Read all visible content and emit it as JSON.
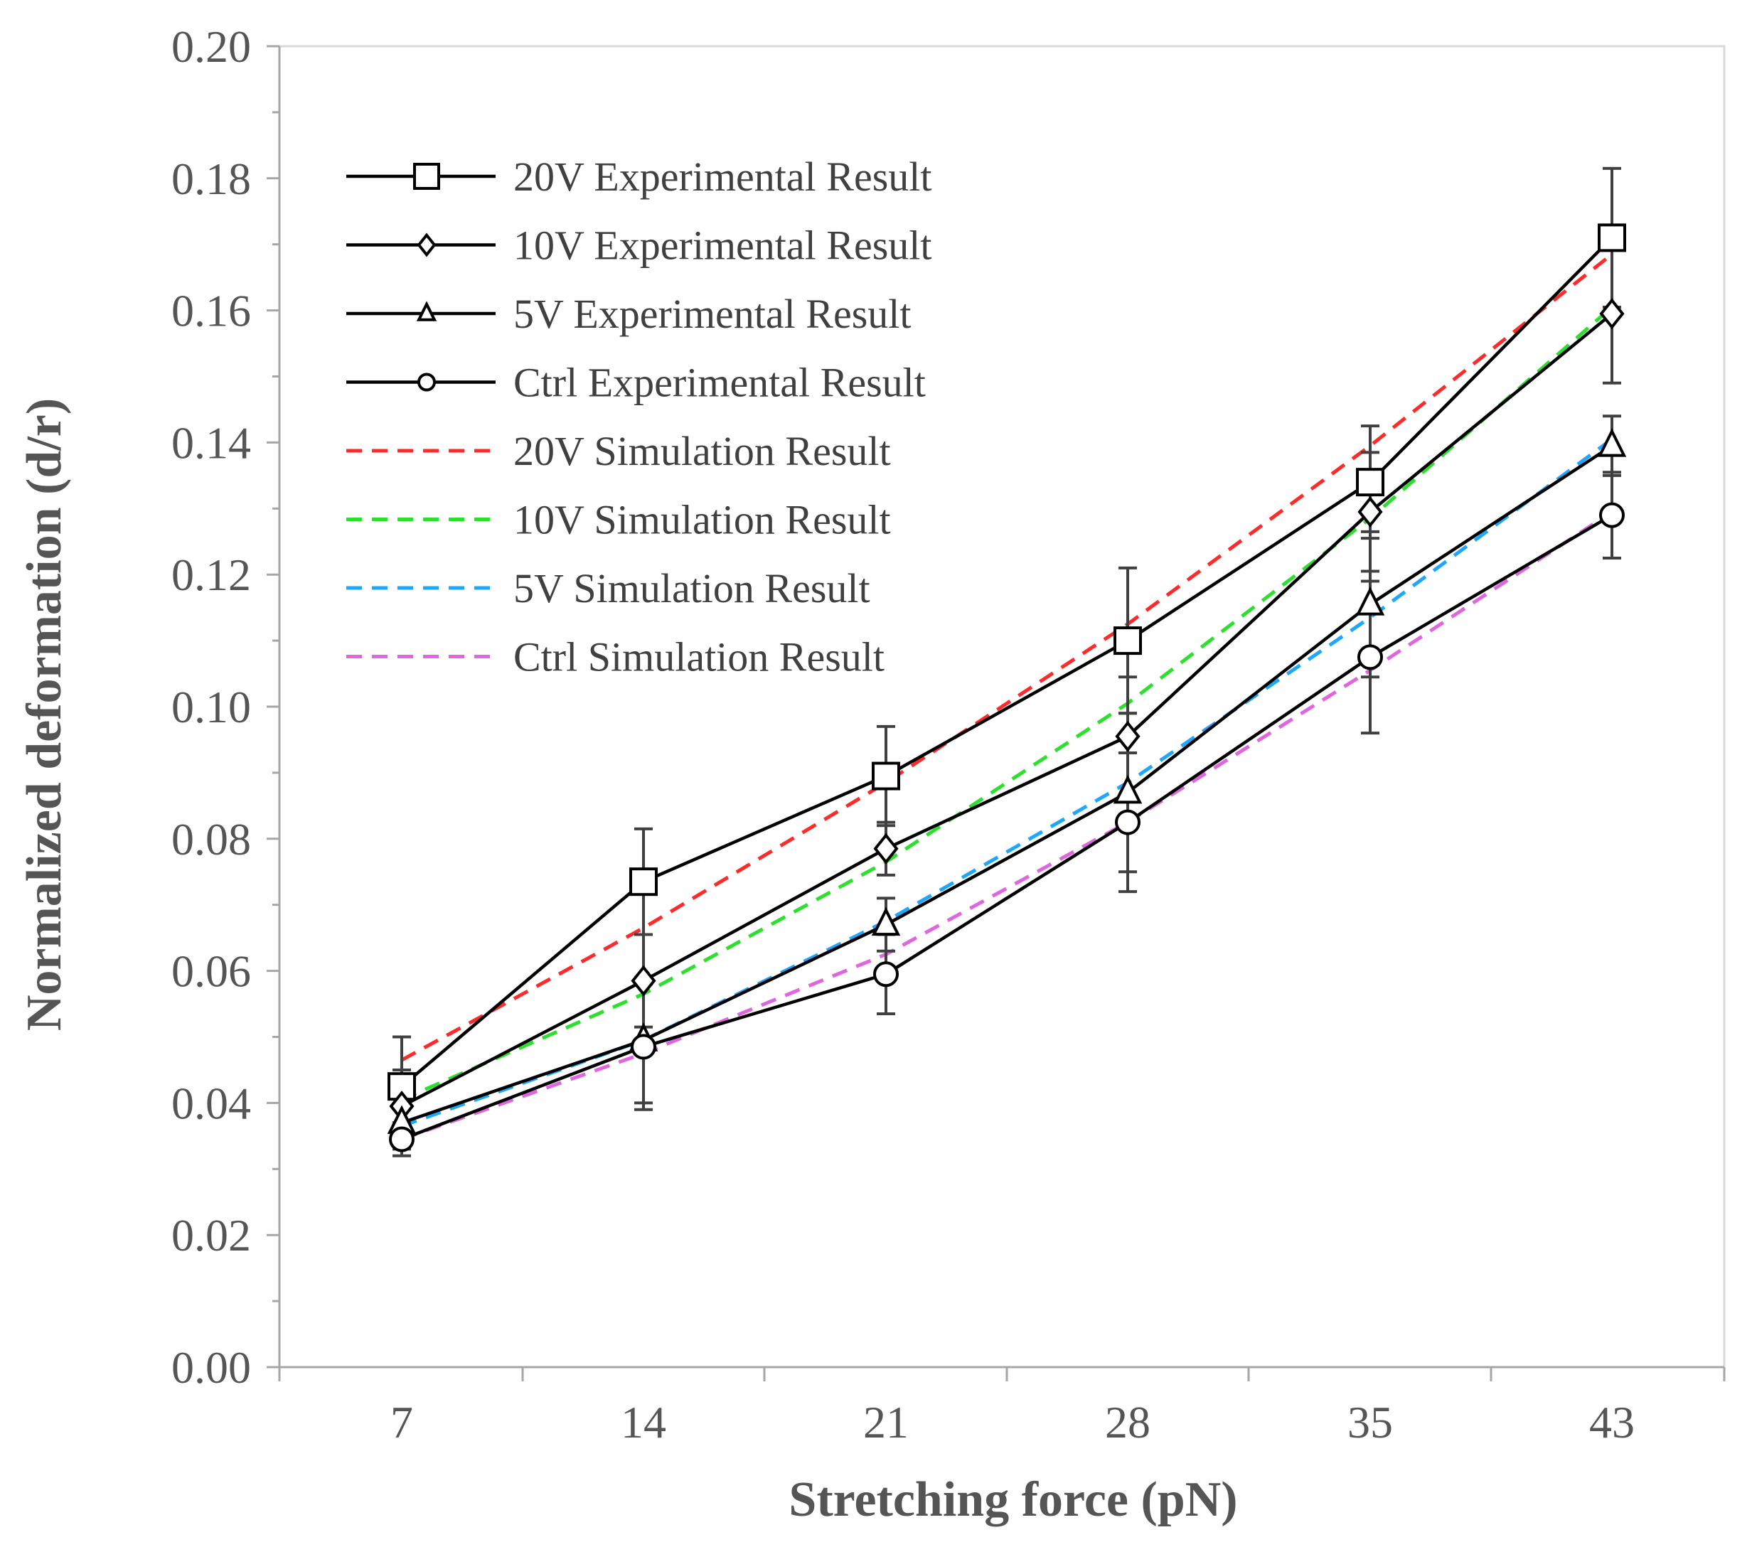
{
  "chart_data": {
    "type": "line",
    "title": "",
    "xlabel": "Stretching force (pN)",
    "ylabel": "Normalized deformation (d/r)",
    "categories": [
      "7",
      "14",
      "21",
      "28",
      "35",
      "43"
    ],
    "ylim": [
      0,
      0.2
    ],
    "yticks": [
      "0.00",
      "0.02",
      "0.04",
      "0.06",
      "0.08",
      "0.10",
      "0.12",
      "0.14",
      "0.16",
      "0.18",
      "0.20"
    ],
    "grid": false,
    "legend_position": "top-left",
    "series": [
      {
        "name": "20V Experimental Result",
        "kind": "experimental",
        "marker": "square",
        "color": "#000000",
        "values": [
          0.0425,
          0.0735,
          0.0895,
          0.11,
          0.134,
          0.171
        ],
        "errors": [
          0.0075,
          0.008,
          0.0075,
          0.011,
          0.0085,
          0.0105
        ]
      },
      {
        "name": "10V Experimental Result",
        "kind": "experimental",
        "marker": "diamond",
        "color": "#000000",
        "values": [
          0.0395,
          0.0585,
          0.0785,
          0.0955,
          0.1295,
          0.1595
        ],
        "errors": [
          0.0055,
          0.007,
          0.004,
          0.009,
          0.009,
          0.0105
        ]
      },
      {
        "name": "5V Experimental Result",
        "kind": "experimental",
        "marker": "triangle",
        "color": "#000000",
        "values": [
          0.037,
          0.0495,
          0.067,
          0.087,
          0.1155,
          0.1395
        ],
        "errors": [
          0.004,
          0.0095,
          0.004,
          0.012,
          0.011,
          0.0045
        ]
      },
      {
        "name": "Ctrl Experimental Result",
        "kind": "experimental",
        "marker": "circle",
        "color": "#000000",
        "values": [
          0.0345,
          0.0485,
          0.0595,
          0.0825,
          0.1075,
          0.129
        ],
        "errors": [
          0.0025,
          0.0095,
          0.006,
          0.0105,
          0.0115,
          0.0065
        ]
      },
      {
        "name": "20V Simulation Result",
        "kind": "simulation",
        "color": "#ff2a2a",
        "values": [
          0.0465,
          0.0665,
          0.0885,
          0.1125,
          0.1395,
          0.1685
        ]
      },
      {
        "name": "10V Simulation Result",
        "kind": "simulation",
        "color": "#2ee02e",
        "values": [
          0.0405,
          0.0565,
          0.0765,
          0.1005,
          0.1285,
          0.1605
        ]
      },
      {
        "name": "5V Simulation Result",
        "kind": "simulation",
        "color": "#1ea7ff",
        "values": [
          0.0365,
          0.0495,
          0.0675,
          0.0885,
          0.1135,
          0.1405
        ]
      },
      {
        "name": "Ctrl Simulation Result",
        "kind": "simulation",
        "color": "#e066e0",
        "values": [
          0.0345,
          0.0475,
          0.0625,
          0.0825,
          0.1055,
          0.1295
        ]
      }
    ]
  }
}
